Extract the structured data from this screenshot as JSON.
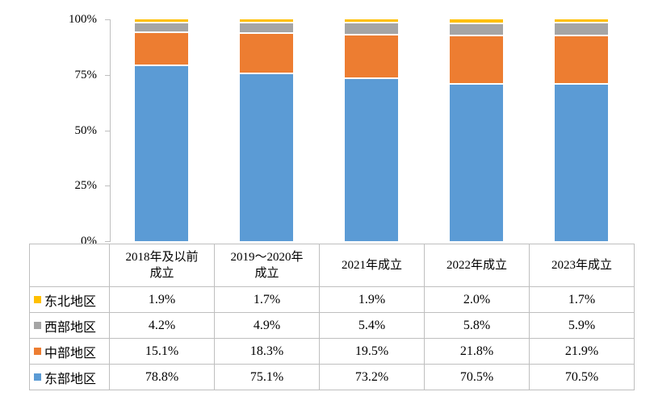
{
  "chart_data": {
    "type": "bar",
    "stacked": true,
    "percent_stacked": true,
    "title": "",
    "xlabel": "",
    "ylabel": "",
    "ylim": [
      0,
      100
    ],
    "grid": false,
    "legend_position": "table-left",
    "y_ticks": [
      "100%",
      "75%",
      "50%",
      "25%",
      "0%"
    ],
    "categories": [
      "2018年及以前成立",
      "2019～2020年成立",
      "2021年成立",
      "2022年成立",
      "2023年成立"
    ],
    "category_display": [
      "2018年及以前\n成立",
      "2019～2020年\n成立",
      "2021年成立",
      "2022年成立",
      "2023年成立"
    ],
    "series": [
      {
        "name": "东北地区",
        "color": "#FFC000",
        "values": [
          1.9,
          1.7,
          1.9,
          2.0,
          1.7
        ]
      },
      {
        "name": "西部地区",
        "color": "#A5A5A5",
        "values": [
          4.2,
          4.9,
          5.4,
          5.8,
          5.9
        ]
      },
      {
        "name": "中部地区",
        "color": "#ED7D31",
        "values": [
          15.1,
          18.3,
          19.5,
          21.8,
          21.9
        ]
      },
      {
        "name": "东部地区",
        "color": "#5B9BD5",
        "values": [
          78.8,
          75.1,
          73.2,
          70.5,
          70.5
        ]
      }
    ],
    "table_values_display": [
      [
        "1.9%",
        "1.7%",
        "1.9%",
        "2.0%",
        "1.7%"
      ],
      [
        "4.2%",
        "4.9%",
        "5.4%",
        "5.8%",
        "5.9%"
      ],
      [
        "15.1%",
        "18.3%",
        "19.5%",
        "21.8%",
        "21.9%"
      ],
      [
        "78.8%",
        "75.1%",
        "73.2%",
        "70.5%",
        "70.5%"
      ]
    ],
    "stack_order_bottom_to_top": [
      "东部地区",
      "中部地区",
      "西部地区",
      "东北地区"
    ]
  },
  "colors": {
    "axis": "#BFBFBF",
    "table_border": "#BFBFBF",
    "background": "#FFFFFF",
    "text": "#000000",
    "segment_gap": "#FFFFFF"
  },
  "layout_values": {
    "corner_cell": ""
  }
}
